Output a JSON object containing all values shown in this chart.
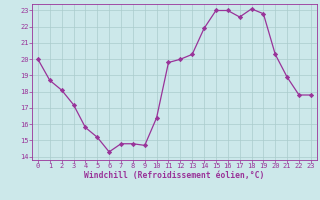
{
  "x": [
    0,
    1,
    2,
    3,
    4,
    5,
    6,
    7,
    8,
    9,
    10,
    11,
    12,
    13,
    14,
    15,
    16,
    17,
    18,
    19,
    20,
    21,
    22,
    23
  ],
  "y": [
    20.0,
    18.7,
    18.1,
    17.2,
    15.8,
    15.2,
    14.3,
    14.8,
    14.8,
    14.7,
    16.4,
    19.8,
    20.0,
    20.3,
    21.9,
    23.0,
    23.0,
    22.6,
    23.1,
    22.8,
    20.3,
    18.9,
    17.8,
    17.8
  ],
  "line_color": "#993399",
  "marker": "D",
  "marker_size": 2.2,
  "bg_color": "#cce8ea",
  "grid_color": "#aacccc",
  "xlabel": "Windchill (Refroidissement éolien,°C)",
  "xlabel_color": "#993399",
  "tick_color": "#993399",
  "ylim": [
    13.8,
    23.4
  ],
  "xlim": [
    -0.5,
    23.5
  ],
  "yticks": [
    14,
    15,
    16,
    17,
    18,
    19,
    20,
    21,
    22,
    23
  ],
  "xticks": [
    0,
    1,
    2,
    3,
    4,
    5,
    6,
    7,
    8,
    9,
    10,
    11,
    12,
    13,
    14,
    15,
    16,
    17,
    18,
    19,
    20,
    21,
    22,
    23
  ],
  "tick_fontsize": 5.0,
  "xlabel_fontsize": 5.8,
  "xlabel_fontweight": "bold"
}
